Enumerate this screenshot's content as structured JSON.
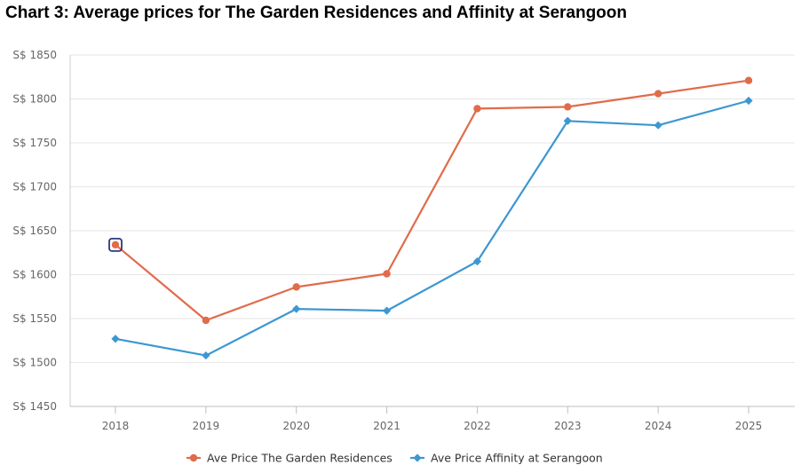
{
  "page_title": "Chart 3: Average prices for The Garden Residences and Affinity at Serangoon",
  "chart_data": {
    "type": "line",
    "title": "Chart 3: Average prices for The Garden Residences and Affinity at Serangoon",
    "xlabel": "",
    "ylabel": "",
    "categories": [
      "2018",
      "2019",
      "2020",
      "2021",
      "2022",
      "2023",
      "2024",
      "2025"
    ],
    "ylim": [
      1450,
      1850
    ],
    "yticks": [
      1450,
      1500,
      1550,
      1600,
      1650,
      1700,
      1750,
      1800,
      1850
    ],
    "ytick_prefix": "S$ ",
    "grid": true,
    "legend_position": "bottom",
    "series": [
      {
        "name": "Ave Price The Garden Residences",
        "color": "#e06c4a",
        "marker": "circle",
        "values": [
          1634,
          1548,
          1586,
          1601,
          1789,
          1791,
          1806,
          1821
        ]
      },
      {
        "name": "Ave Price Affinity at Serangoon",
        "color": "#3d97d1",
        "marker": "diamond",
        "values": [
          1527,
          1508,
          1561,
          1559,
          1615,
          1775,
          1770,
          1798
        ]
      }
    ],
    "highlighted_point": {
      "series": "Ave Price The Garden Residences",
      "category": "2018",
      "highlight_color": "#2b3b7a"
    }
  }
}
